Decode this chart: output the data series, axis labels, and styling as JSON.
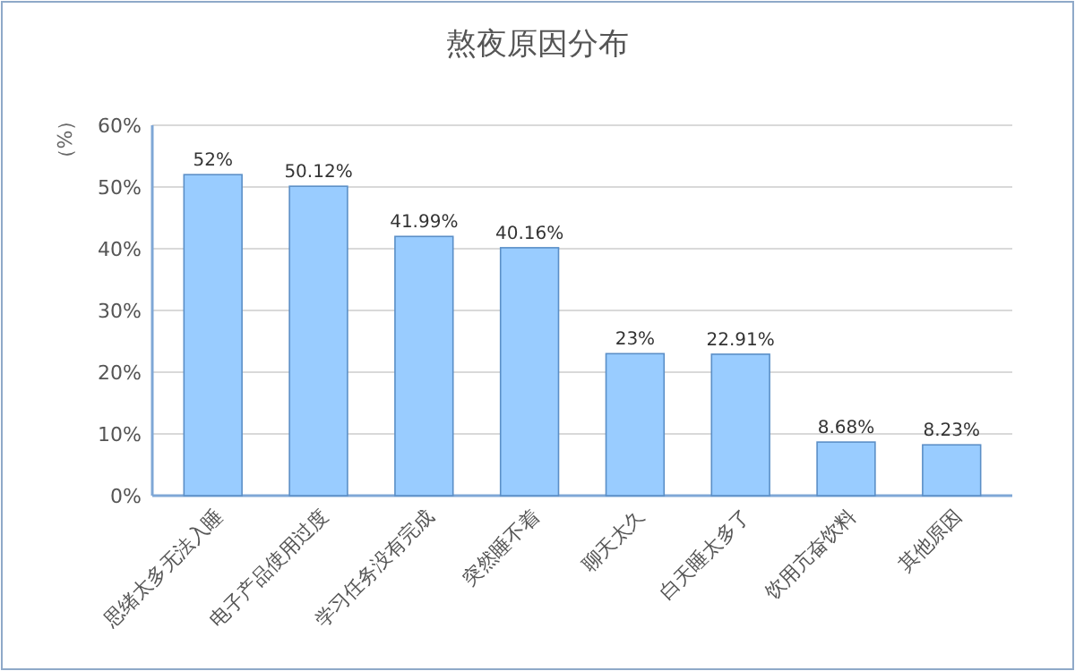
{
  "chart_data": {
    "type": "bar",
    "title": "熬夜原因分布",
    "ylabel": "（%）",
    "categories": [
      "思绪太多无法入睡",
      "电子产品使用过度",
      "学习任务没有完成",
      "突然睡不着",
      "聊天太久",
      "白天睡太多了",
      "饮用亢奋饮料",
      "其他原因"
    ],
    "values": [
      52,
      50.12,
      41.99,
      40.16,
      23,
      22.91,
      8.68,
      8.23
    ],
    "value_labels": [
      "52%",
      "50.12%",
      "41.99%",
      "40.16%",
      "23%",
      "22.91%",
      "8.68%",
      "8.23%"
    ],
    "color": "#99ccff",
    "ylim": [
      0,
      60
    ],
    "yticks": [
      {
        "value": 0,
        "label": "0%"
      },
      {
        "value": 10,
        "label": "10%"
      },
      {
        "value": 20,
        "label": "20%"
      },
      {
        "value": 30,
        "label": "30%"
      },
      {
        "value": 40,
        "label": "40%"
      },
      {
        "value": 50,
        "label": "50%"
      },
      {
        "value": 60,
        "label": "60%"
      }
    ],
    "grid": "y"
  }
}
